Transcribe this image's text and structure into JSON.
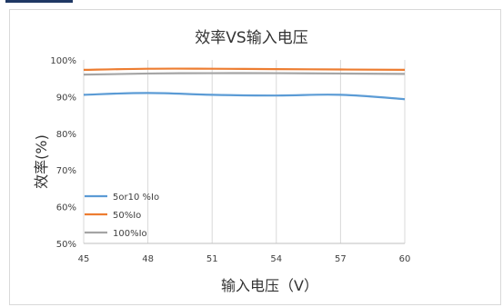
{
  "chart_data": {
    "type": "line",
    "title": "效率VS输入电压",
    "xlabel": "输入电压（V）",
    "ylabel": "效率(%)",
    "x": [
      45,
      48,
      51,
      54,
      57,
      60
    ],
    "x_tick_labels": [
      "45",
      "48",
      "51",
      "54",
      "57",
      "60"
    ],
    "ylim": [
      50,
      100
    ],
    "y_tick_labels": [
      "50%",
      "60%",
      "70%",
      "80%",
      "90%",
      "100%"
    ],
    "y_ticks": [
      50,
      60,
      70,
      80,
      90,
      100
    ],
    "grid": "vertical",
    "legend_position": "bottom-left",
    "series": [
      {
        "name": "5or10 %Io",
        "color": "#5b9bd5",
        "values": [
          90.5,
          91.0,
          90.5,
          90.3,
          90.5,
          89.3
        ]
      },
      {
        "name": "50%Io",
        "color": "#ed7d31",
        "values": [
          97.3,
          97.6,
          97.6,
          97.5,
          97.4,
          97.3
        ]
      },
      {
        "name": "100%Io",
        "color": "#a5a5a5",
        "values": [
          96.0,
          96.3,
          96.4,
          96.4,
          96.3,
          96.2
        ]
      }
    ]
  }
}
